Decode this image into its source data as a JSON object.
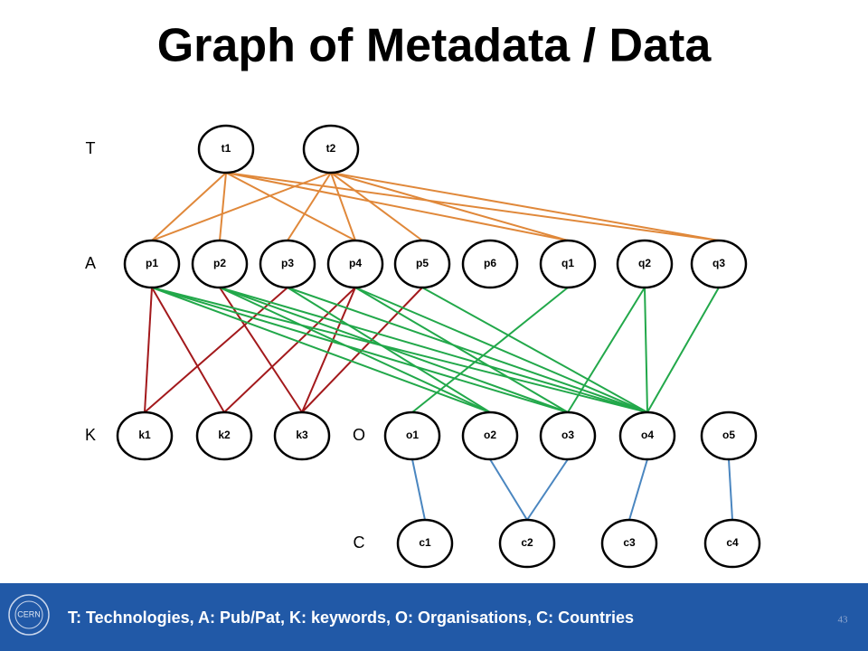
{
  "title": "Graph of Metadata / Data",
  "row_labels": [
    "T",
    "A",
    "K",
    "O",
    "C"
  ],
  "nodes": [
    "t1",
    "t2",
    "p1",
    "p2",
    "p3",
    "p4",
    "p5",
    "p6",
    "q1",
    "q2",
    "q3",
    "k1",
    "k2",
    "k3",
    "o1",
    "o2",
    "o3",
    "o4",
    "o5",
    "c1",
    "c2",
    "c3",
    "c4"
  ],
  "footer": {
    "logo": "CERN",
    "text": "T: Technologies, A: Pub/Pat, K: keywords, O: Organisations, C: Countries",
    "page_number": "43"
  }
}
